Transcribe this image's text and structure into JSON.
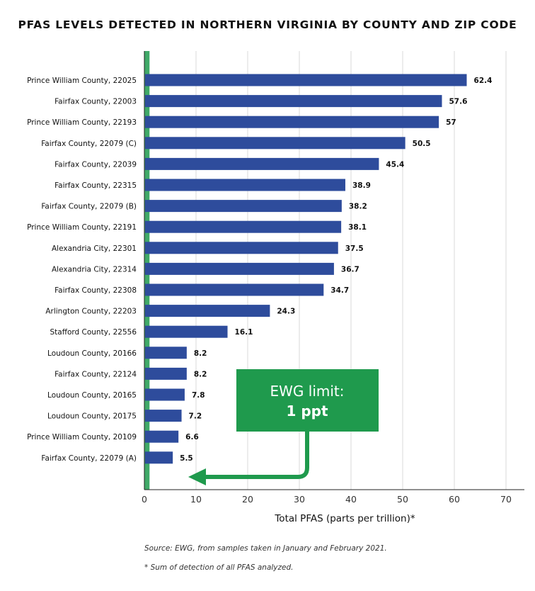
{
  "chart_data": {
    "type": "bar",
    "orientation": "horizontal",
    "title": "PFAS LEVELS DETECTED IN NORTHERN VIRGINIA BY COUNTY AND ZIP CODE",
    "xlabel": "Total PFAS (parts per trillion)*",
    "ylabel": "",
    "xlim": [
      0,
      70
    ],
    "xticks": [
      0,
      10,
      20,
      30,
      40,
      50,
      60,
      70
    ],
    "grid": "vertical",
    "categories": [
      "Prince William County, 22025",
      "Fairfax County, 22003",
      "Prince William County, 22193",
      "Fairfax County, 22079 (C)",
      "Fairfax County, 22039",
      "Fairfax County, 22315",
      "Fairfax County, 22079 (B)",
      "Prince William County, 22191",
      "Alexandria City, 22301",
      "Alexandria City, 22314",
      "Fairfax County, 22308",
      "Arlington County, 22203",
      "Stafford County, 22556",
      "Loudoun County, 20166",
      "Fairfax County, 22124",
      "Loudoun County, 20165",
      "Loudoun County, 20175",
      "Prince William County, 20109",
      "Fairfax County, 22079 (A)"
    ],
    "values": [
      62.4,
      57.6,
      57,
      50.5,
      45.4,
      38.9,
      38.2,
      38.1,
      37.5,
      36.7,
      34.7,
      24.3,
      16.1,
      8.2,
      8.2,
      7.8,
      7.2,
      6.6,
      5.5
    ],
    "value_labels": [
      "62.4",
      "57.6",
      "57",
      "50.5",
      "45.4",
      "38.9",
      "38.2",
      "38.1",
      "37.5",
      "36.7",
      "34.7",
      "24.3",
      "16.1",
      "8.2",
      "8.2",
      "7.8",
      "7.2",
      "6.6",
      "5.5"
    ],
    "annotation": {
      "line1": "EWG limit:",
      "line2": "1 ppt",
      "value": 1
    }
  },
  "notes": {
    "source": "Source: EWG, from samples taken in January and February 2021.",
    "footnote": "* Sum of detection of all PFAS analyzed."
  },
  "colors": {
    "bar": "#2e4c9c",
    "limit_line": "#1f9a4d",
    "annotation_box": "#1f9a4d",
    "annotation_text": "#ffffff",
    "grid": "#d9d9d9",
    "axis": "#222222",
    "text": "#111111"
  }
}
